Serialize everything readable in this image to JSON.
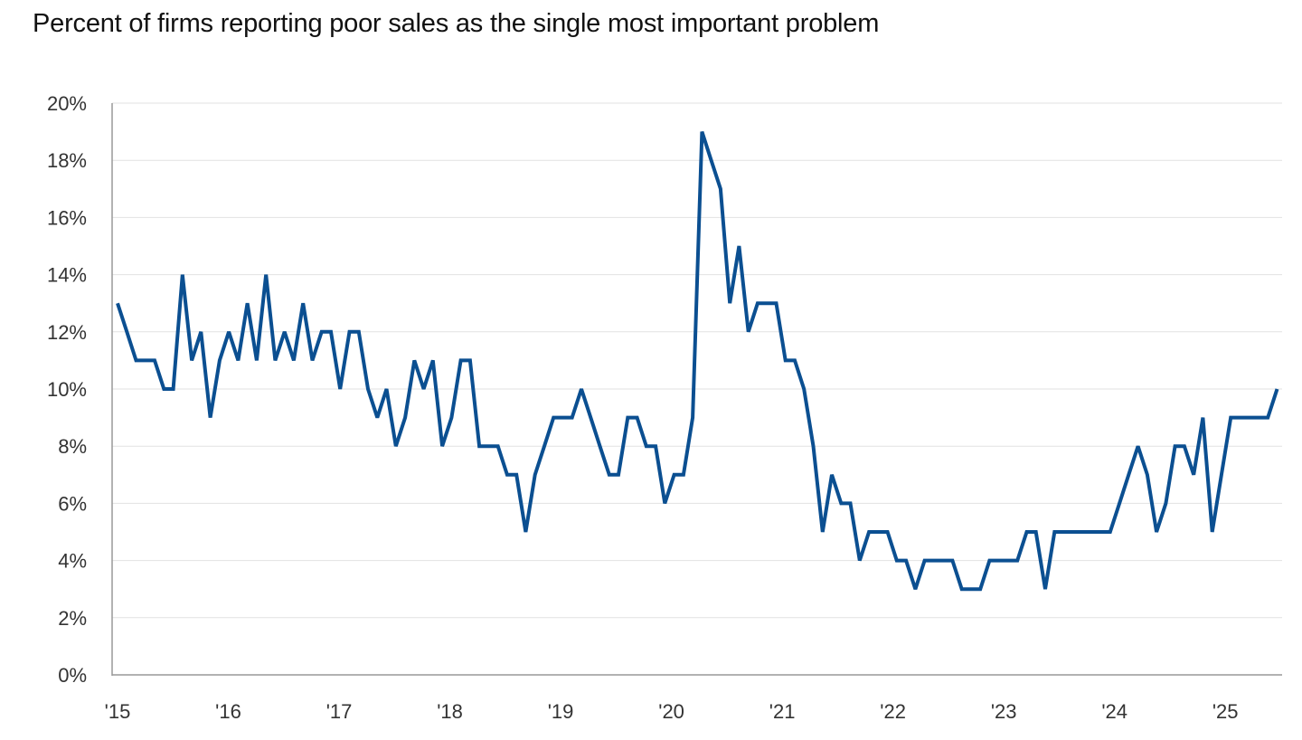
{
  "chart_data": {
    "type": "line",
    "title": "Percent of firms reporting poor sales as the single most important problem",
    "xlabel": "",
    "ylabel": "",
    "x_start": "2015-01",
    "x_frequency": "monthly",
    "x_end": "2025-06",
    "x_tick_labels": [
      "'15",
      "'16",
      "'17",
      "'18",
      "'19",
      "'20",
      "'21",
      "'22",
      "'23",
      "'24",
      "'25"
    ],
    "y_tick_labels": [
      "0%",
      "2%",
      "4%",
      "6%",
      "8%",
      "10%",
      "12%",
      "14%",
      "16%",
      "18%",
      "20%"
    ],
    "ylim": [
      0,
      20
    ],
    "grid": true,
    "line_color": "#0b4f91",
    "series": [
      {
        "values": [
          13,
          12,
          11,
          11,
          11,
          10,
          10,
          14,
          11,
          12,
          9,
          11,
          12,
          11,
          13,
          11,
          14,
          11,
          12,
          11,
          13,
          11,
          12,
          12,
          10,
          12,
          12,
          10,
          9,
          10,
          8,
          9,
          11,
          10,
          11,
          8,
          9,
          11,
          11,
          8,
          8,
          8,
          7,
          7,
          5,
          7,
          8,
          9,
          9,
          9,
          10,
          9,
          8,
          7,
          7,
          9,
          9,
          8,
          8,
          6,
          7,
          7,
          9,
          19,
          18,
          17,
          13,
          15,
          12,
          13,
          13,
          13,
          11,
          11,
          10,
          8,
          5,
          7,
          6,
          6,
          4,
          5,
          5,
          5,
          4,
          4,
          3,
          4,
          4,
          4,
          4,
          3,
          3,
          3,
          4,
          4,
          4,
          4,
          5,
          5,
          3,
          5,
          5,
          5,
          5,
          5,
          5,
          5,
          6,
          7,
          8,
          7,
          5,
          6,
          8,
          8,
          7,
          9,
          5,
          7,
          9,
          9,
          9,
          9,
          9,
          10
        ]
      }
    ]
  }
}
